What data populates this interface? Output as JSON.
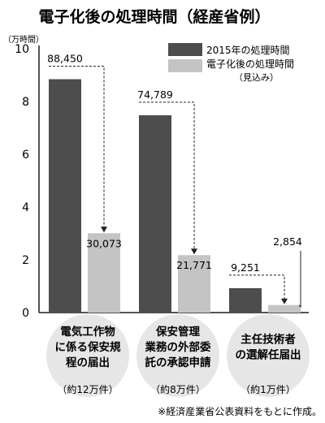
{
  "chart_data": {
    "type": "bar",
    "title": "電子化後の処理時間（経産省例）",
    "ylabel": "（万時間）",
    "ylim": [
      0,
      10
    ],
    "yticks": [
      "0",
      "2",
      "4",
      "6",
      "8",
      "10"
    ],
    "ytick_values": [
      0,
      2,
      4,
      6,
      8,
      10
    ],
    "categories": [
      {
        "lines": [
          "電気工作物",
          "に係る保安規",
          "程の届出"
        ],
        "sub": "（約12万件）"
      },
      {
        "lines": [
          "保安管理",
          "業務の外部委",
          "託の承認申請"
        ],
        "sub": "（約8万件）"
      },
      {
        "lines": [
          "主任技術者",
          "の選解任届出"
        ],
        "sub": "（約1万件）"
      }
    ],
    "series": [
      {
        "name": "2015年の処理時間",
        "values": [
          8.845,
          7.4789,
          0.9251
        ],
        "labels": [
          "88,450",
          "74,789",
          "9,251"
        ],
        "color": "#4d4d4d"
      },
      {
        "name": "電子化後の処理時間",
        "name_sub": "（見込み）",
        "values": [
          3.0073,
          2.1771,
          0.2854
        ],
        "labels": [
          "30,073",
          "21,771",
          "2,854"
        ],
        "color": "#c4c4c4"
      }
    ],
    "legend_position": "top-right",
    "grid": false
  },
  "note": "※経済産業省公表資料をもとに作成。"
}
